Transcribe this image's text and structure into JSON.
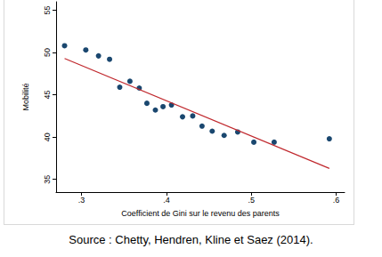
{
  "chart_data": {
    "type": "scatter",
    "xlabel": "Coefficient de Gini sur le revenu des parents",
    "ylabel": "Mobilité",
    "source": "Source : Chetty, Hendren, Kline et Saez (2014).",
    "xlim": [
      0.27,
      0.61
    ],
    "xticks": [
      {
        "value": 0.3,
        "label": ".3"
      },
      {
        "value": 0.4,
        "label": ".4"
      },
      {
        "value": 0.5,
        "label": ".5"
      },
      {
        "value": 0.6,
        "label": ".6"
      }
    ],
    "ylim": [
      33.5,
      56
    ],
    "yticks": [
      35,
      40,
      45,
      50,
      55
    ],
    "grid": false,
    "series": [
      {
        "type": "scatter",
        "color": "#1a476f",
        "marker": "circle",
        "x": [
          0.28,
          0.305,
          0.32,
          0.333,
          0.345,
          0.357,
          0.368,
          0.377,
          0.387,
          0.396,
          0.406,
          0.419,
          0.431,
          0.442,
          0.454,
          0.468,
          0.484,
          0.503,
          0.527,
          0.592
        ],
        "values": [
          50.8,
          50.3,
          49.6,
          49.2,
          45.9,
          46.6,
          45.8,
          44.0,
          43.2,
          43.6,
          43.8,
          42.4,
          42.5,
          41.3,
          40.7,
          40.2,
          40.6,
          39.4,
          39.4,
          39.8
        ]
      },
      {
        "type": "line",
        "color": "#c0282d",
        "line_style": "solid",
        "x": [
          0.28,
          0.592
        ],
        "values": [
          49.3,
          36.3
        ]
      }
    ]
  }
}
